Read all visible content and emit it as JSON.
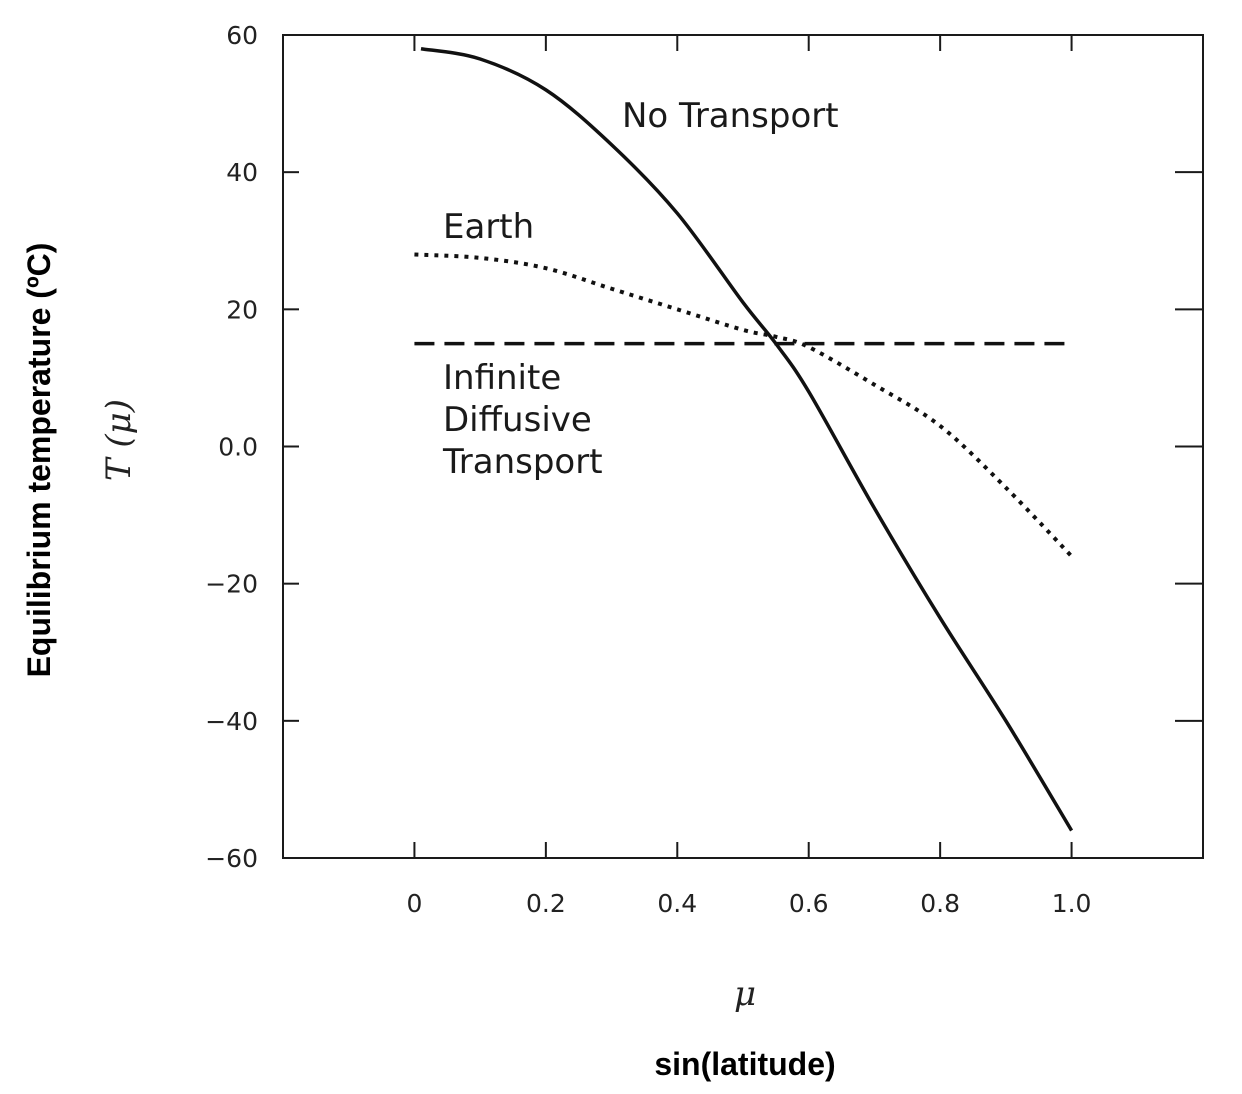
{
  "chart_data": {
    "type": "line",
    "xlabel": "μ",
    "xlabel_secondary": "sin(latitude)",
    "ylabel": "T (μ)",
    "ylabel_secondary": "Equilibrium temperature (ºC)",
    "xlim": [
      -0.2,
      1.2
    ],
    "ylim": [
      -60,
      60
    ],
    "x_ticks": [
      0,
      0.2,
      0.4,
      0.6,
      0.8,
      1.0
    ],
    "x_tick_labels": [
      "0",
      "0.2",
      "0.4",
      "0.6",
      "0.8",
      "1.0"
    ],
    "y_ticks": [
      60,
      40,
      20,
      0,
      -20,
      -40,
      -60
    ],
    "y_tick_labels": [
      "60",
      "40",
      "20",
      "0.0",
      "−20",
      "−40",
      "−60"
    ],
    "grid": false,
    "legend": "none (inline labels)",
    "series": [
      {
        "name": "No Transport",
        "style": "solid",
        "x": [
          0.01,
          0.1,
          0.2,
          0.3,
          0.4,
          0.5,
          0.55,
          0.6,
          0.7,
          0.8,
          0.9,
          1.0
        ],
        "y": [
          58,
          56.5,
          52,
          44,
          34,
          21,
          15,
          8,
          -9,
          -25,
          -40,
          -56
        ]
      },
      {
        "name": "Earth",
        "style": "dotted",
        "x": [
          0.0,
          0.1,
          0.2,
          0.3,
          0.4,
          0.5,
          0.55,
          0.6,
          0.7,
          0.8,
          0.9,
          1.0
        ],
        "y": [
          28,
          27.5,
          26,
          23,
          20,
          17,
          16,
          14.5,
          9,
          3,
          -6,
          -16
        ]
      },
      {
        "name": "Infinite Diffusive Transport",
        "style": "dashed",
        "x": [
          0.0,
          1.0
        ],
        "y": [
          15,
          15
        ]
      }
    ],
    "annotations": [
      {
        "series": "No Transport",
        "lines": [
          "No Transport"
        ]
      },
      {
        "series": "Earth",
        "lines": [
          "Earth"
        ]
      },
      {
        "series": "Infinite Diffusive Transport",
        "lines": [
          "Infinite",
          "Diffusive",
          "Transport"
        ]
      }
    ]
  }
}
